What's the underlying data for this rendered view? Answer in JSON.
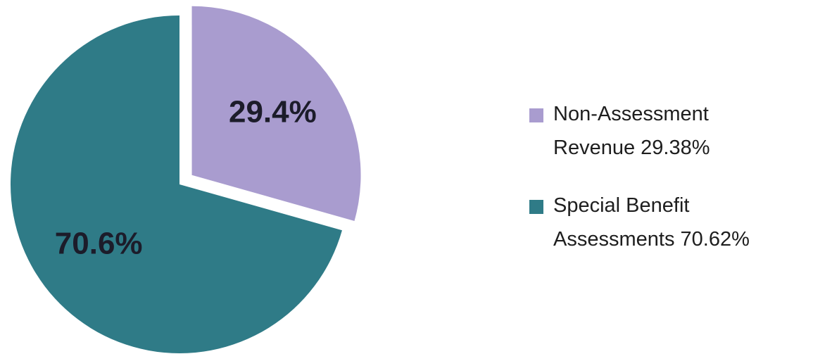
{
  "chart_data": {
    "type": "pie",
    "categories": [
      "Non-Assessment Revenue 29.38%",
      "Special Benefit Assessments 70.62%"
    ],
    "values": [
      29.38,
      70.62
    ],
    "value_labels": [
      "29.4%",
      "70.6%"
    ],
    "colors": [
      "#a99ccf",
      "#2f7b87"
    ],
    "exploded": [
      true,
      false
    ],
    "legend": "right"
  }
}
